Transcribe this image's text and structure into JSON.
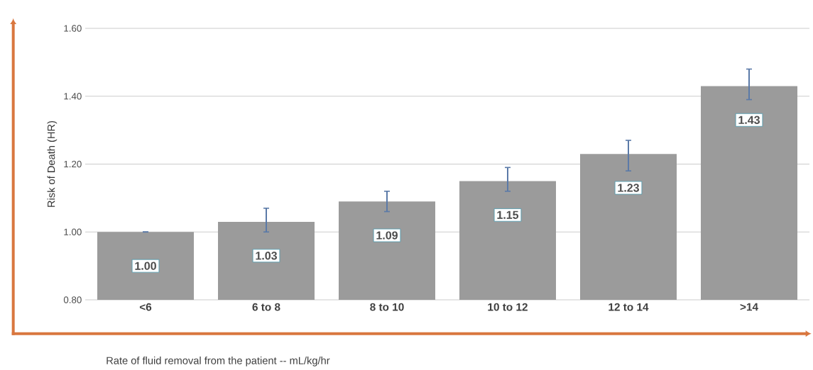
{
  "chart_data": {
    "type": "bar",
    "xlabel": "Rate of fluid removal from the patient -- mL/kg/hr",
    "ylabel": "Risk of Death (HR)",
    "categories": [
      "<6",
      "6 to 8",
      "8 to 10",
      "10 to 12",
      "12 to 14",
      ">14"
    ],
    "values": [
      1.0,
      1.03,
      1.09,
      1.15,
      1.23,
      1.43
    ],
    "value_labels": [
      "1.00",
      "1.03",
      "1.09",
      "1.15",
      "1.23",
      "1.43"
    ],
    "errors": [
      [
        1.0,
        1.0
      ],
      [
        1.0,
        1.07
      ],
      [
        1.06,
        1.12
      ],
      [
        1.12,
        1.19
      ],
      [
        1.18,
        1.27
      ],
      [
        1.39,
        1.48
      ]
    ],
    "color": "#9b9b9b",
    "ylim": [
      0.8,
      1.6
    ],
    "yticks": [
      {
        "value": 0.8,
        "label": "0.80"
      },
      {
        "value": 1.0,
        "label": "1.00"
      },
      {
        "value": 1.2,
        "label": "1.20"
      },
      {
        "value": 1.4,
        "label": "1.40"
      },
      {
        "value": 1.6,
        "label": "1.60"
      }
    ],
    "grid": "y"
  }
}
